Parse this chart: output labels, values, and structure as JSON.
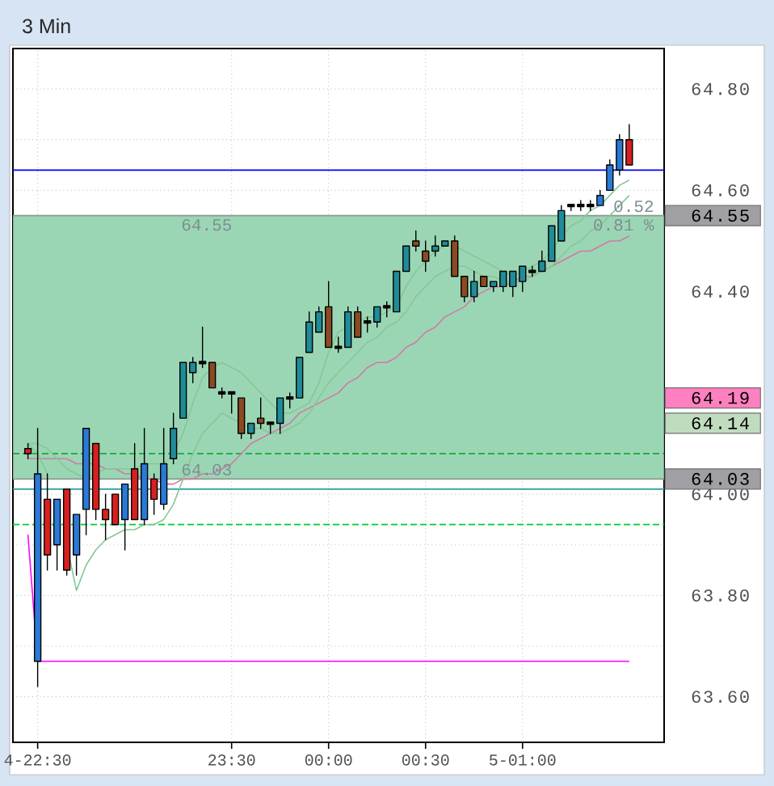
{
  "chart_data": {
    "type": "candlestick",
    "title": "3 Min",
    "categories": [
      null,
      "4-22:30",
      null,
      null,
      null,
      null,
      null,
      null,
      null,
      null,
      null,
      null,
      null,
      null,
      null,
      null,
      null,
      null,
      null,
      null,
      null,
      "23:30",
      null,
      null,
      null,
      null,
      null,
      null,
      null,
      null,
      null,
      "00:00",
      null,
      null,
      null,
      null,
      null,
      null,
      null,
      null,
      null,
      "00:30",
      null,
      null,
      null,
      null,
      null,
      null,
      null,
      null,
      null,
      "5-01:00",
      null,
      null,
      null,
      null,
      null,
      null,
      null,
      null,
      null,
      null,
      null
    ],
    "ohlc": [
      [
        64.09,
        64.1,
        64.07,
        64.08
      ],
      [
        63.67,
        64.13,
        63.62,
        64.04
      ],
      [
        63.99,
        64.04,
        63.85,
        63.88
      ],
      [
        63.9,
        63.99,
        63.85,
        63.99
      ],
      [
        64.01,
        64.01,
        63.84,
        63.85
      ],
      [
        63.88,
        63.96,
        63.84,
        63.96
      ],
      [
        63.97,
        64.13,
        63.92,
        64.13
      ],
      [
        64.1,
        64.1,
        63.95,
        63.97
      ],
      [
        63.97,
        64.0,
        63.91,
        63.95
      ],
      [
        64.0,
        64.0,
        63.94,
        63.94
      ],
      [
        63.95,
        64.02,
        63.89,
        64.02
      ],
      [
        64.05,
        64.1,
        63.95,
        63.95
      ],
      [
        63.95,
        64.13,
        63.94,
        64.06
      ],
      [
        64.03,
        64.04,
        63.96,
        63.99
      ],
      [
        63.98,
        64.13,
        63.97,
        64.06
      ],
      [
        64.07,
        64.16,
        64.06,
        64.13
      ],
      [
        64.15,
        64.26,
        64.15,
        64.26
      ],
      [
        64.24,
        64.27,
        64.22,
        64.26
      ],
      [
        64.26,
        64.33,
        64.25,
        64.26
      ],
      [
        64.26,
        64.26,
        64.21,
        64.21
      ],
      [
        64.2,
        64.21,
        64.19,
        64.2
      ],
      [
        64.2,
        64.2,
        64.16,
        64.2
      ],
      [
        64.19,
        64.19,
        64.11,
        64.12
      ],
      [
        64.12,
        64.14,
        64.11,
        64.14
      ],
      [
        64.15,
        64.19,
        64.13,
        64.14
      ],
      [
        64.14,
        64.14,
        64.12,
        64.14
      ],
      [
        64.14,
        64.19,
        64.12,
        64.19
      ],
      [
        64.19,
        64.2,
        64.17,
        64.19
      ],
      [
        64.19,
        64.27,
        64.19,
        64.27
      ],
      [
        64.28,
        64.36,
        64.28,
        64.34
      ],
      [
        64.32,
        64.37,
        64.32,
        64.36
      ],
      [
        64.37,
        64.42,
        64.29,
        64.29
      ],
      [
        64.29,
        64.31,
        64.28,
        64.29
      ],
      [
        64.29,
        64.37,
        64.29,
        64.36
      ],
      [
        64.36,
        64.37,
        64.31,
        64.31
      ],
      [
        64.34,
        64.35,
        64.32,
        64.34
      ],
      [
        64.34,
        64.37,
        64.33,
        64.37
      ],
      [
        64.37,
        64.38,
        64.35,
        64.37
      ],
      [
        64.36,
        64.44,
        64.36,
        64.44
      ],
      [
        64.44,
        64.49,
        64.44,
        64.49
      ],
      [
        64.5,
        64.52,
        64.48,
        64.49
      ],
      [
        64.48,
        64.5,
        64.44,
        64.46
      ],
      [
        64.48,
        64.51,
        64.47,
        64.49
      ],
      [
        64.49,
        64.5,
        64.49,
        64.5
      ],
      [
        64.5,
        64.51,
        64.43,
        64.43
      ],
      [
        64.43,
        64.43,
        64.38,
        64.39
      ],
      [
        64.39,
        64.44,
        64.38,
        64.42
      ],
      [
        64.43,
        64.43,
        64.41,
        64.41
      ],
      [
        64.41,
        64.42,
        64.4,
        64.42
      ],
      [
        64.41,
        64.44,
        64.4,
        64.44
      ],
      [
        64.41,
        64.44,
        64.39,
        64.44
      ],
      [
        64.42,
        64.45,
        64.4,
        64.45
      ],
      [
        64.44,
        64.45,
        64.43,
        64.44
      ],
      [
        64.44,
        64.48,
        64.44,
        64.46
      ],
      [
        64.46,
        64.53,
        64.46,
        64.53
      ],
      [
        64.5,
        64.57,
        64.5,
        64.56
      ],
      [
        64.57,
        64.57,
        64.56,
        64.57
      ],
      [
        64.57,
        64.58,
        64.56,
        64.57
      ],
      [
        64.57,
        64.58,
        64.56,
        64.57
      ],
      [
        64.57,
        64.6,
        64.57,
        64.59
      ],
      [
        64.6,
        64.66,
        64.6,
        64.65
      ],
      [
        64.64,
        64.71,
        64.63,
        64.7
      ],
      [
        64.7,
        64.73,
        64.65,
        64.65
      ]
    ],
    "colors": [
      "#d82020",
      "#2a7ad6",
      "#d82020",
      "#2a7ad6",
      "#d82020",
      "#2a7ad6",
      "#2a7ad6",
      "#d82020",
      "#d82020",
      "#d82020",
      "#2a7ad6",
      "#d82020",
      "#2a7ad6",
      "#d82020",
      "#2a7ad6",
      "#1f8c98",
      "#1f8c98",
      "#1f8c98",
      "#000000",
      "#8c4a22",
      "#000000",
      "#000000",
      "#8c4a22",
      "#1f8c98",
      "#8c4a22",
      "#000000",
      "#1f8c98",
      "#000000",
      "#1f8c98",
      "#1f8c98",
      "#1f8c98",
      "#8c4a22",
      "#000000",
      "#1f8c98",
      "#8c4a22",
      "#000000",
      "#1f8c98",
      "#000000",
      "#1f8c98",
      "#1f8c98",
      "#8c4a22",
      "#8c4a22",
      "#1f8c98",
      "#1f8c98",
      "#8c4a22",
      "#8c4a22",
      "#1f8c98",
      "#8c4a22",
      "#1f8c98",
      "#1f8c98",
      "#1f8c98",
      "#1f8c98",
      "#000000",
      "#1f8c98",
      "#1f8c98",
      "#1f8c98",
      "#000000",
      "#000000",
      "#000000",
      "#2a7ad6",
      "#2a7ad6",
      "#2a7ad6",
      "#d82020"
    ],
    "series": [
      {
        "type": "line",
        "color": "#d07aa8",
        "values": [
          64.07,
          64.07,
          64.07,
          64.07,
          64.07,
          64.06,
          64.06,
          64.06,
          64.05,
          64.05,
          64.04,
          64.04,
          64.03,
          64.03,
          64.02,
          64.02,
          64.03,
          64.03,
          64.04,
          64.04,
          64.05,
          64.06,
          64.08,
          64.1,
          64.11,
          64.12,
          64.13,
          64.14,
          64.16,
          64.17,
          64.18,
          64.19,
          64.2,
          64.22,
          64.23,
          64.25,
          64.26,
          64.26,
          64.27,
          64.29,
          64.3,
          64.32,
          64.33,
          64.35,
          64.36,
          64.37,
          64.39,
          64.4,
          64.41,
          64.41,
          64.42,
          64.43,
          64.43,
          64.44,
          64.45,
          64.46,
          64.47,
          64.48,
          64.48,
          64.49,
          64.5,
          64.5,
          64.51
        ]
      },
      {
        "type": "line",
        "color": "#86c796",
        "values": [
          64.1,
          64.1,
          64.09,
          64.07,
          64.05,
          64.04,
          64.03,
          64.04,
          64.05,
          64.05,
          64.05,
          64.05,
          64.06,
          64.06,
          64.06,
          64.08,
          64.12,
          64.18,
          64.23,
          64.25,
          64.26,
          64.25,
          64.24,
          64.22,
          64.2,
          64.18,
          64.16,
          64.16,
          64.17,
          64.18,
          64.22,
          64.28,
          64.32,
          64.33,
          64.34,
          64.35,
          64.35,
          64.36,
          64.37,
          64.41,
          64.44,
          64.46,
          64.48,
          64.49,
          64.49,
          64.48,
          64.47,
          64.46,
          64.45,
          64.44,
          64.43,
          64.44,
          64.45,
          64.46,
          64.48,
          64.51,
          64.53,
          64.54,
          64.56,
          64.57,
          64.59,
          64.61,
          64.62
        ]
      },
      {
        "type": "line",
        "color": "#86c796",
        "values": [
          64.1,
          64.08,
          64.04,
          null,
          63.9,
          63.81,
          63.86,
          63.89,
          63.91,
          63.92,
          63.93,
          63.93,
          63.94,
          63.94,
          63.95,
          63.98,
          64.03,
          64.08,
          64.12,
          64.14,
          64.16,
          64.15,
          64.14,
          64.13,
          64.13,
          64.12,
          64.12,
          64.13,
          64.14,
          64.16,
          64.19,
          64.22,
          64.24,
          64.26,
          64.28,
          64.3,
          64.31,
          64.33,
          64.34,
          64.36,
          64.39,
          64.41,
          64.43,
          64.44,
          64.45,
          64.45,
          64.44,
          64.43,
          64.43,
          64.42,
          64.42,
          64.42,
          64.43,
          64.44,
          64.45,
          64.47,
          64.49,
          64.5,
          64.52,
          64.53,
          64.55,
          64.57,
          64.59
        ]
      },
      {
        "type": "line",
        "color": "#ff00ff",
        "values": [
          63.92,
          63.67,
          63.67,
          63.67,
          63.67,
          63.67,
          63.67,
          63.67,
          63.67,
          63.67,
          63.67,
          63.67,
          63.67,
          63.67,
          63.67,
          63.67,
          63.67,
          63.67,
          63.67,
          63.67,
          63.67,
          63.67,
          63.67,
          63.67,
          63.67,
          63.67,
          63.67,
          63.67,
          63.67,
          63.67,
          63.67,
          63.67,
          63.67,
          63.67,
          63.67,
          63.67,
          63.67,
          63.67,
          63.67,
          63.67,
          63.67,
          63.67,
          63.67,
          63.67,
          63.67,
          63.67,
          63.67,
          63.67,
          63.67,
          63.67,
          63.67,
          63.67,
          63.67,
          63.67,
          63.67,
          63.67,
          63.67,
          63.67,
          63.67,
          63.67,
          63.67,
          63.67,
          63.67
        ]
      }
    ],
    "ylim": [
      63.51,
      64.88
    ],
    "yticks": [
      {
        "value": 63.6,
        "label": "63.60"
      },
      {
        "value": 63.7,
        "label": null
      },
      {
        "value": 63.8,
        "label": "63.80"
      },
      {
        "value": 63.9,
        "label": null
      },
      {
        "value": 64.0,
        "label": "64.00"
      },
      {
        "value": 64.03,
        "label": "64.03"
      },
      {
        "value": 64.1,
        "label": null
      },
      {
        "value": 64.14,
        "label": "64.14"
      },
      {
        "value": 64.19,
        "label": "64.19"
      },
      {
        "value": 64.2,
        "label": null
      },
      {
        "value": 64.3,
        "label": null
      },
      {
        "value": 64.4,
        "label": "64.40"
      },
      {
        "value": 64.5,
        "label": null
      },
      {
        "value": 64.55,
        "label": "64.55"
      },
      {
        "value": 64.6,
        "label": "64.60"
      },
      {
        "value": 64.7,
        "label": null
      },
      {
        "value": 64.8,
        "label": "64.80"
      }
    ],
    "grid": true,
    "ref_lines": [
      {
        "axis": "y",
        "value": 64.64,
        "color": "#0000ff"
      },
      {
        "axis": "y",
        "value": 64.08,
        "color": "#22b04a",
        "line_style": "dashed"
      },
      {
        "axis": "y",
        "value": 64.01,
        "color": "#2a9d9d"
      },
      {
        "axis": "y",
        "value": 63.94,
        "color": "#00cc33",
        "line_style": "dashed"
      }
    ],
    "bands": [
      {
        "axis": "y",
        "from": 64.03,
        "to": 64.55,
        "color": "#9bd6b4"
      }
    ],
    "annotations": [
      "64.55",
      "64.03",
      "0.52",
      "0.81 %"
    ]
  }
}
